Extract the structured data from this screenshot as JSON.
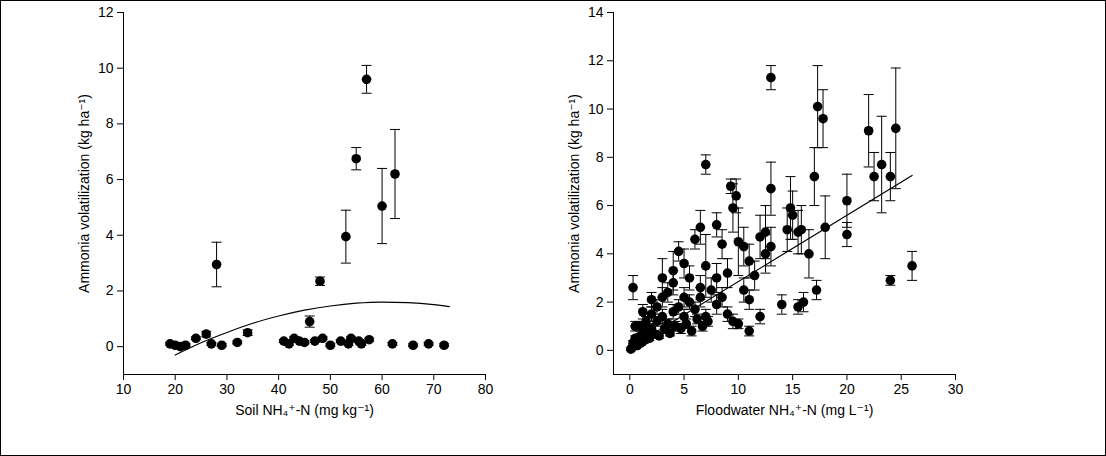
{
  "chart_data": [
    {
      "type": "scatter",
      "x_label": "Soil NH₄⁺-N (mg kg⁻¹)",
      "y_label": "Ammonia volatilization (kg ha⁻¹)",
      "color": "#000000",
      "marker": "circle",
      "grid": false,
      "x": [
        19,
        20,
        21,
        22,
        24,
        26,
        27,
        28,
        29,
        32,
        34,
        41,
        42,
        43,
        44,
        45,
        46,
        47,
        48,
        48.5,
        50,
        52,
        53,
        53.5,
        54,
        55,
        55.5,
        56,
        57,
        57.5,
        60,
        62,
        62.5,
        66,
        69,
        72
      ],
      "values": [
        0.1,
        0.05,
        0,
        0.05,
        0.3,
        0.45,
        0.1,
        2.95,
        0.05,
        0.15,
        0.5,
        0.2,
        0.1,
        0.3,
        0.2,
        0.15,
        0.9,
        0.2,
        2.35,
        0.3,
        0.05,
        0.2,
        3.95,
        0.1,
        0.3,
        6.75,
        0.2,
        0.1,
        9.6,
        0.25,
        5.05,
        0.1,
        6.2,
        0.05,
        0.1,
        0.05
      ],
      "error": [
        0.05,
        0.05,
        0.05,
        0.05,
        0.05,
        0.1,
        0.05,
        0.8,
        0.05,
        0.05,
        0.1,
        0.05,
        0.05,
        0.05,
        0.05,
        0.05,
        0.2,
        0.05,
        0.15,
        0.05,
        0.05,
        0.05,
        0.95,
        0.05,
        0.05,
        0.4,
        0.05,
        0.05,
        0.5,
        0.05,
        1.35,
        0.05,
        1.6,
        0.05,
        0.05,
        0.05
      ],
      "fit": {
        "type": "line",
        "x": [
          20,
          25,
          30,
          35,
          40,
          45,
          50,
          55,
          60,
          65,
          70,
          73
        ],
        "values": [
          -0.3,
          0.14,
          0.51,
          0.84,
          1.1,
          1.31,
          1.46,
          1.56,
          1.6,
          1.58,
          1.51,
          1.44
        ]
      },
      "xlim": [
        10,
        80
      ],
      "ylim": [
        -1,
        12
      ],
      "xticks": [
        10,
        20,
        30,
        40,
        50,
        60,
        70,
        80
      ],
      "yticks": [
        0,
        2,
        4,
        6,
        8,
        10,
        12
      ]
    },
    {
      "type": "scatter",
      "x_label": "Floodwater NH₄⁺-N (mg L⁻¹)",
      "y_label": "Ammonia volatilization (kg ha⁻¹)",
      "color": "#000000",
      "marker": "circle",
      "grid": false,
      "x": [
        0.1,
        0.2,
        0.3,
        0.3,
        0.5,
        0.5,
        0.7,
        1,
        1,
        1,
        1.2,
        1.3,
        1.5,
        1.5,
        1.8,
        2,
        2,
        2,
        2.2,
        2.5,
        2.5,
        2.7,
        3,
        3,
        3,
        3.2,
        3.5,
        3.5,
        3.7,
        4,
        4,
        4,
        4.2,
        4.5,
        4.5,
        4.7,
        5,
        5,
        5,
        5.2,
        5.5,
        5.5,
        5.7,
        6,
        6,
        6.2,
        6.5,
        6.5,
        6.5,
        6.7,
        7,
        7,
        7,
        7.2,
        7.5,
        8,
        8,
        8,
        8.5,
        8.5,
        9,
        9,
        9.3,
        9.5,
        9.5,
        9.8,
        10,
        10,
        10.5,
        10.5,
        11,
        11,
        11,
        11.5,
        12,
        12,
        12.5,
        12.5,
        13,
        13,
        13,
        14,
        14.5,
        14.8,
        15,
        15.5,
        15.5,
        15.8,
        16,
        16.5,
        17,
        17.2,
        17.3,
        17.8,
        18,
        20,
        20,
        22,
        22.5,
        23.2,
        24,
        24,
        24.5,
        26
      ],
      "values": [
        0.05,
        0.1,
        0.3,
        2.6,
        0.5,
        1,
        0.2,
        0.3,
        0.6,
        1,
        1.6,
        0.4,
        0.8,
        1.2,
        0.5,
        0.9,
        1.5,
        2.1,
        0.7,
        1.2,
        1.8,
        0.6,
        1.4,
        2.2,
        3,
        0.9,
        1.1,
        2.4,
        0.7,
        1.6,
        2.8,
        3.3,
        1,
        1.8,
        4.1,
        0.9,
        1.4,
        2.2,
        3.6,
        1.1,
        2,
        3,
        0.8,
        1.7,
        4.6,
        1.3,
        2.2,
        2.6,
        5.1,
        1,
        1.4,
        3.5,
        7.7,
        1.2,
        2.5,
        1.9,
        3,
        5.2,
        2.2,
        4.4,
        1.5,
        3.2,
        6.8,
        1.2,
        5.9,
        6.4,
        1.1,
        4.5,
        2.5,
        4.3,
        0.8,
        2.1,
        3.7,
        3.1,
        1.4,
        4.7,
        4,
        4.9,
        4.3,
        6.7,
        11.3,
        1.9,
        5,
        5.9,
        5.6,
        1.8,
        4.9,
        5,
        2,
        4,
        7.2,
        2.5,
        10.1,
        9.6,
        5.1,
        4.8,
        6.2,
        9.1,
        7.2,
        7.7,
        2.9,
        7.2,
        9.2,
        3.5
      ],
      "error": [
        0.05,
        0.05,
        0.1,
        0.5,
        0.1,
        0.2,
        0.05,
        0.1,
        0.1,
        0.2,
        0.3,
        0.1,
        0.2,
        0.2,
        0.1,
        0.2,
        0.3,
        0.3,
        0.1,
        0.2,
        0.3,
        0.1,
        0.3,
        0.4,
        0.8,
        0.2,
        0.2,
        0.4,
        0.1,
        0.3,
        0.5,
        0.8,
        0.2,
        0.3,
        0.4,
        0.2,
        0.3,
        0.4,
        0.6,
        0.2,
        0.3,
        0.5,
        0.2,
        0.3,
        0.4,
        0.2,
        0.4,
        0.5,
        0.7,
        0.2,
        0.3,
        1.3,
        0.4,
        0.2,
        0.5,
        0.4,
        0.6,
        0.5,
        0.4,
        0.6,
        0.3,
        0.6,
        0.3,
        0.3,
        1,
        0.7,
        0.2,
        1.4,
        0.5,
        0.8,
        0.2,
        0.4,
        0.7,
        0.6,
        0.3,
        0.9,
        0.8,
        1.1,
        0.8,
        1.1,
        0.5,
        0.4,
        0.9,
        1.3,
        1,
        0.3,
        0.9,
        1,
        0.4,
        1,
        1.2,
        0.4,
        1.7,
        1.2,
        1.3,
        0.5,
        1.1,
        1.5,
        1,
        2,
        0.2,
        1,
        2.5,
        0.6
      ],
      "fit": {
        "type": "line",
        "x": [
          0,
          26
        ],
        "values": [
          0.1,
          7.25
        ]
      },
      "xlim": [
        -1.5,
        30
      ],
      "ylim": [
        -1,
        14
      ],
      "xticks": [
        0,
        5,
        10,
        15,
        20,
        25,
        30
      ],
      "yticks": [
        0,
        2,
        4,
        6,
        8,
        10,
        12,
        14
      ]
    }
  ]
}
